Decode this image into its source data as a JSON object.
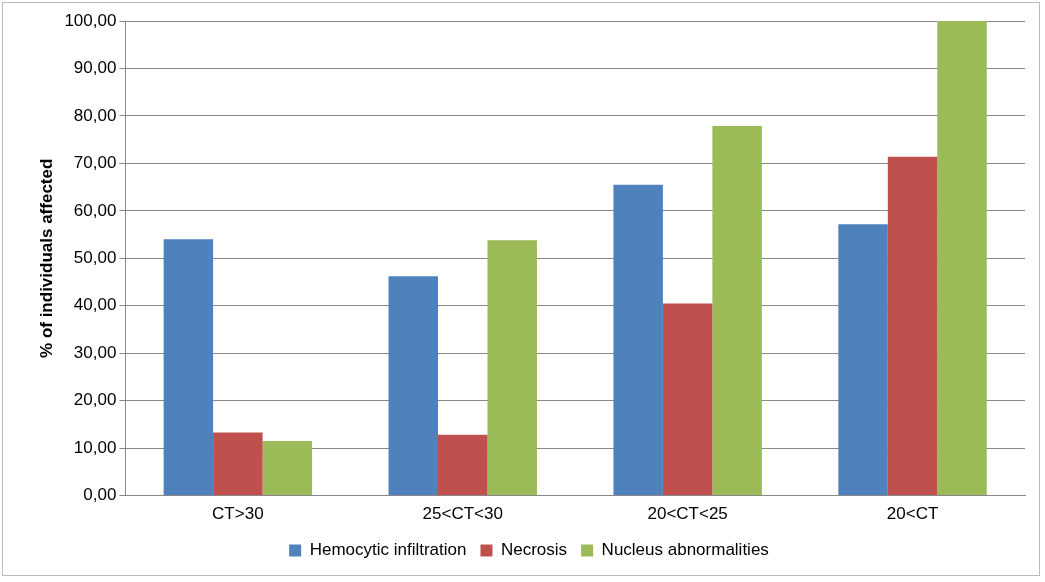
{
  "chart_data": {
    "type": "bar",
    "ylabel": "% of individuals affected",
    "categories": [
      "CT>30",
      "25<CT<30",
      "20<CT<25",
      "20<CT"
    ],
    "series": [
      {
        "name": "Hemocytic infiltration",
        "color": "#4f81bd",
        "values": [
          54.0,
          46.2,
          65.5,
          57.2
        ]
      },
      {
        "name": "Necrosis",
        "color": "#c0504d",
        "values": [
          13.3,
          12.8,
          40.5,
          71.4
        ]
      },
      {
        "name": "Nucleus abnormalities",
        "color": "#9bbb59",
        "values": [
          11.5,
          53.8,
          77.9,
          100.0
        ]
      }
    ],
    "ylim": [
      0,
      100
    ],
    "yticks": [
      {
        "value": 0,
        "label": "0,00"
      },
      {
        "value": 10,
        "label": "10,00"
      },
      {
        "value": 20,
        "label": "20,00"
      },
      {
        "value": 30,
        "label": "30,00"
      },
      {
        "value": 40,
        "label": "40,00"
      },
      {
        "value": 50,
        "label": "50,00"
      },
      {
        "value": 60,
        "label": "60,00"
      },
      {
        "value": 70,
        "label": "70,00"
      },
      {
        "value": 80,
        "label": "80,00"
      },
      {
        "value": 90,
        "label": "90,00"
      },
      {
        "value": 100,
        "label": "100,00"
      }
    ],
    "grid": "y",
    "legend": "bottom"
  }
}
